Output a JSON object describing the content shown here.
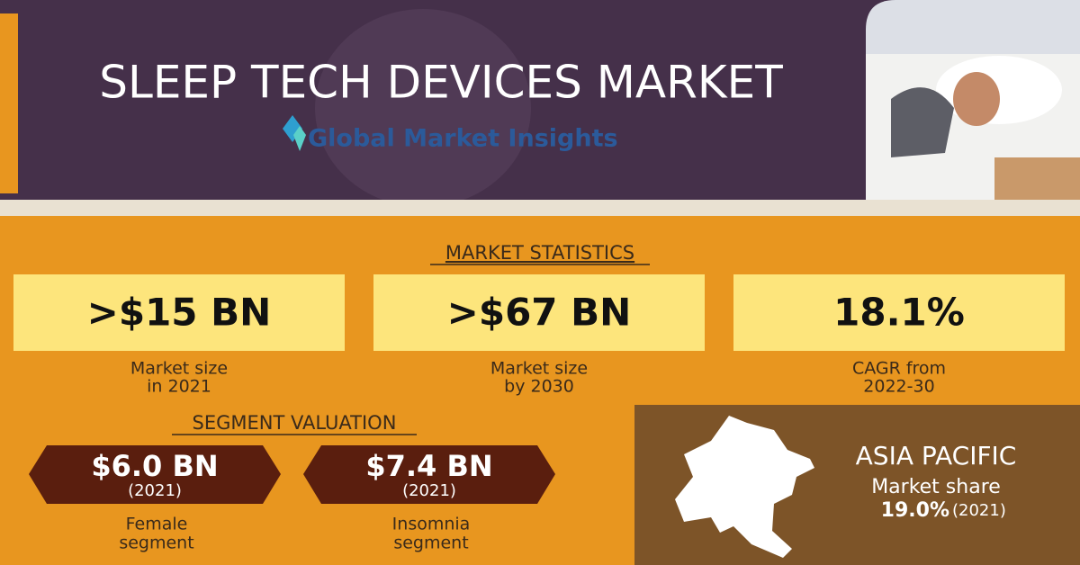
{
  "header": {
    "title": "SLEEP TECH DEVICES MARKET",
    "logo": "Global Market Insights"
  },
  "market_statistics": {
    "heading": "MARKET STATISTICS",
    "items": [
      {
        "value": ">$15 BN",
        "label": [
          "Market size",
          "in 2021"
        ]
      },
      {
        "value": ">$67 BN",
        "label": [
          "Market size",
          "by 2030"
        ]
      },
      {
        "value": "18.1%",
        "label": [
          "CAGR from",
          "2022-30"
        ]
      }
    ]
  },
  "segment_valuation": {
    "heading": "SEGMENT VALUATION",
    "items": [
      {
        "value": "$6.0 BN",
        "year": "(2021)",
        "label": [
          "Female",
          "segment"
        ]
      },
      {
        "value": "$7.4 BN",
        "year": "(2021)",
        "label": [
          "Insomnia",
          "segment"
        ]
      }
    ]
  },
  "region": {
    "name": "ASIA PACIFIC",
    "subtitle": "Market share",
    "share": "19.0%",
    "year": "(2021)"
  }
}
